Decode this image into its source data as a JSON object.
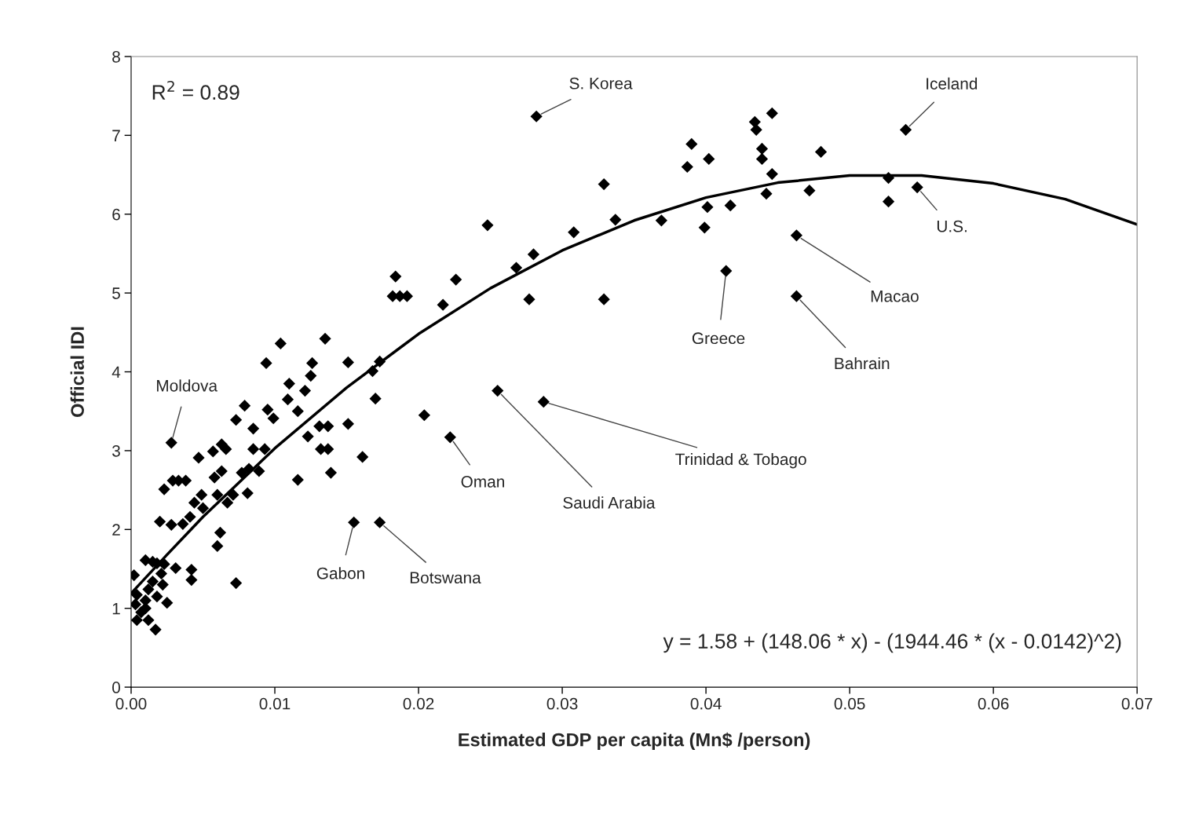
{
  "chart_data": {
    "type": "scatter",
    "xlabel": "Estimated GDP per capita (Mn$ /person)",
    "ylabel": "Official IDI",
    "xlim": [
      0,
      0.07
    ],
    "ylim": [
      0,
      8
    ],
    "xticks": [
      {
        "value": 0,
        "label": "0.00"
      },
      {
        "value": 0.01,
        "label": "0.01"
      },
      {
        "value": 0.02,
        "label": "0.02"
      },
      {
        "value": 0.03,
        "label": "0.03"
      },
      {
        "value": 0.04,
        "label": "0.04"
      },
      {
        "value": 0.05,
        "label": "0.05"
      },
      {
        "value": 0.06,
        "label": "0.06"
      },
      {
        "value": 0.07,
        "label": "0.07"
      }
    ],
    "yticks": [
      0,
      1,
      2,
      3,
      4,
      5,
      6,
      7,
      8
    ],
    "grid": false,
    "legend": false,
    "series": [
      {
        "color": "#000000",
        "marker": "diamond",
        "x": [
          0.0282,
          0.0539,
          0.0547,
          0.0527,
          0.0527,
          0.0463,
          0.0463,
          0.0414,
          0.048,
          0.0472,
          0.0446,
          0.0434,
          0.0435,
          0.0439,
          0.0439,
          0.0446,
          0.0442,
          0.039,
          0.0387,
          0.0402,
          0.0417,
          0.0401,
          0.0399,
          0.0369,
          0.0337,
          0.0329,
          0.0329,
          0.0308,
          0.0277,
          0.028,
          0.0268,
          0.0248,
          0.0226,
          0.0217,
          0.0184,
          0.0182,
          0.0187,
          0.0192,
          0.0287,
          0.0255,
          0.0204,
          0.0222,
          0.0155,
          0.0173,
          0.0161,
          0.017,
          0.0168,
          0.0173,
          0.0151,
          0.0151,
          0.0135,
          0.0104,
          0.0094,
          0.0126,
          0.0125,
          0.011,
          0.0121,
          0.0079,
          0.0095,
          0.0099,
          0.0109,
          0.0116,
          0.0073,
          0.0085,
          0.0028,
          0.0047,
          0.0057,
          0.0063,
          0.0066,
          0.0085,
          0.0093,
          0.0123,
          0.0131,
          0.0137,
          0.0132,
          0.0137,
          0.0139,
          0.0116,
          0.0023,
          0.0029,
          0.0033,
          0.0038,
          0.0058,
          0.0063,
          0.0077,
          0.0082,
          0.0089,
          0.006,
          0.0049,
          0.0044,
          0.005,
          0.0041,
          0.0036,
          0.0028,
          0.002,
          0.0081,
          0.0067,
          0.0071,
          0.0062,
          0.006,
          0.0073,
          0.001,
          0.0031,
          0.0042,
          0.0042,
          0.0025,
          0.0017,
          0.0002,
          0.0018,
          0.0021,
          0.0015,
          0.0012,
          0.001,
          0.0007,
          0.0012,
          0.0004,
          0.0023,
          0.0018,
          0.0003,
          0.001,
          0.0015,
          0.0022,
          0.0004
        ],
        "values": [
          7.24,
          7.07,
          6.34,
          6.46,
          6.16,
          5.73,
          4.96,
          5.28,
          6.79,
          6.3,
          7.28,
          7.17,
          7.07,
          6.83,
          6.7,
          6.51,
          6.26,
          6.89,
          6.6,
          6.7,
          6.11,
          6.09,
          5.83,
          5.92,
          5.93,
          6.38,
          4.92,
          5.77,
          4.92,
          5.49,
          5.32,
          5.86,
          5.17,
          4.85,
          5.21,
          4.96,
          4.96,
          4.96,
          3.62,
          3.76,
          3.45,
          3.17,
          2.09,
          2.09,
          2.92,
          3.66,
          4.01,
          4.13,
          4.12,
          3.34,
          4.42,
          4.36,
          4.11,
          4.11,
          3.95,
          3.85,
          3.76,
          3.57,
          3.52,
          3.41,
          3.65,
          3.5,
          3.39,
          3.28,
          3.1,
          2.91,
          2.99,
          3.08,
          3.02,
          3.02,
          3.02,
          3.18,
          3.31,
          3.31,
          3.02,
          3.02,
          2.72,
          2.63,
          2.51,
          2.62,
          2.62,
          2.62,
          2.66,
          2.74,
          2.72,
          2.77,
          2.74,
          2.44,
          2.44,
          2.34,
          2.27,
          2.16,
          2.07,
          2.06,
          2.1,
          2.46,
          2.34,
          2.44,
          1.96,
          1.79,
          1.32,
          1.61,
          1.51,
          1.49,
          1.36,
          1.07,
          0.73,
          1.42,
          1.57,
          1.44,
          1.34,
          1.24,
          1.1,
          0.95,
          0.85,
          0.85,
          1.56,
          1.15,
          1.05,
          1.0,
          1.59,
          1.3,
          1.17
        ]
      },
      {
        "type": "line",
        "color": "#000000",
        "marker": "none",
        "line_style": "solid",
        "x": [
          0,
          0.0025,
          0.005,
          0.01,
          0.015,
          0.02,
          0.025,
          0.03,
          0.035,
          0.04,
          0.045,
          0.05,
          0.055,
          0.06,
          0.065,
          0.07
        ],
        "values": [
          1.19,
          1.68,
          2.16,
          3.03,
          3.8,
          4.48,
          5.06,
          5.54,
          5.92,
          6.21,
          6.4,
          6.49,
          6.49,
          6.39,
          6.19,
          5.87
        ]
      }
    ],
    "annotations": [
      "R$^{2}$ = 0.89",
      "y = 1.58 + (148.06 * x) - (1944.46 * (x - 0.0142)^2)",
      {
        "text": "S. Korea",
        "x": 0.0282,
        "y": 7.24
      },
      {
        "text": "Iceland",
        "x": 0.0539,
        "y": 7.07
      },
      {
        "text": "U.S.",
        "x": 0.0547,
        "y": 6.34
      },
      {
        "text": "Macao",
        "x": 0.0463,
        "y": 5.73
      },
      {
        "text": "Bahrain",
        "x": 0.0463,
        "y": 4.96
      },
      {
        "text": "Greece",
        "x": 0.0414,
        "y": 5.28
      },
      {
        "text": "Moldova",
        "x": 0.0028,
        "y": 3.1
      },
      {
        "text": "Trinidad & Tobago",
        "x": 0.0287,
        "y": 3.62
      },
      {
        "text": "Saudi Arabia",
        "x": 0.0255,
        "y": 3.76
      },
      {
        "text": "Oman",
        "x": 0.0222,
        "y": 3.17
      },
      {
        "text": "Gabon",
        "x": 0.0155,
        "y": 2.09
      },
      {
        "text": "Botswana",
        "x": 0.0173,
        "y": 2.09
      }
    ]
  }
}
